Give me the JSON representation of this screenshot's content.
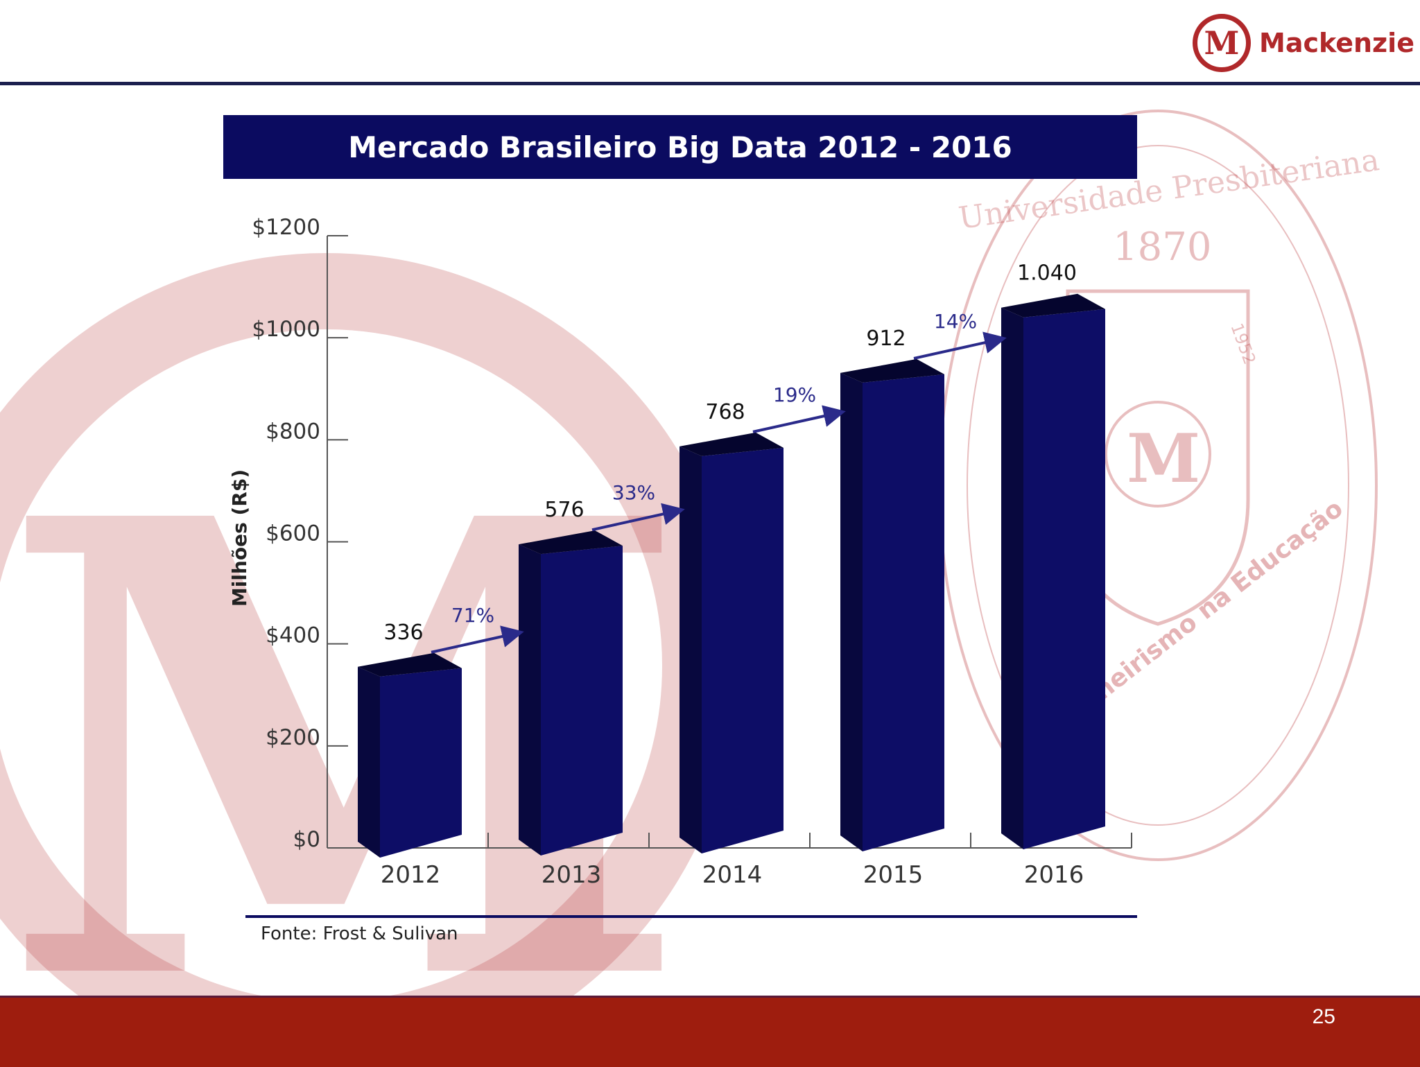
{
  "header": {
    "logo_letter": "M",
    "logo_text": "Mackenzie"
  },
  "watermark": {
    "seal_year": "1870",
    "seal_year_small": "1952",
    "seal_letter": "M",
    "seal_text_top": "Universidade Presbiteriana",
    "seal_text_bottom": "Pioneirismo na Educação",
    "big_letter": "M"
  },
  "colors": {
    "title_bar": "#0b0b60",
    "bar_front": "#0d0d66",
    "bar_side": "#08083e",
    "bar_top": "#05052e",
    "arrow": "#2a2a8a",
    "footer": "#9e1d0e",
    "brand_red": "#b0282a"
  },
  "chart_data": {
    "type": "bar",
    "title": "Mercado Brasileiro Big Data 2012 - 2016",
    "ylabel": "Milhões (R$)",
    "xlabel": "",
    "categories": [
      "2012",
      "2013",
      "2014",
      "2015",
      "2016"
    ],
    "values": [
      336,
      576,
      768,
      912,
      1040
    ],
    "value_labels": [
      "336",
      "576",
      "768",
      "912",
      "1.040"
    ],
    "growth_labels": [
      "71%",
      "33%",
      "19%",
      "14%"
    ],
    "ylim": [
      0,
      1200
    ],
    "yticks": [
      0,
      200,
      400,
      600,
      800,
      1000,
      1200
    ],
    "ytick_labels": [
      "$0",
      "$200",
      "$400",
      "$600",
      "$800",
      "$1000",
      "$1200"
    ],
    "grid": false,
    "style": "3d-bar"
  },
  "source": "Fonte: Frost & Sulivan",
  "footer": {
    "page_number": "25"
  }
}
